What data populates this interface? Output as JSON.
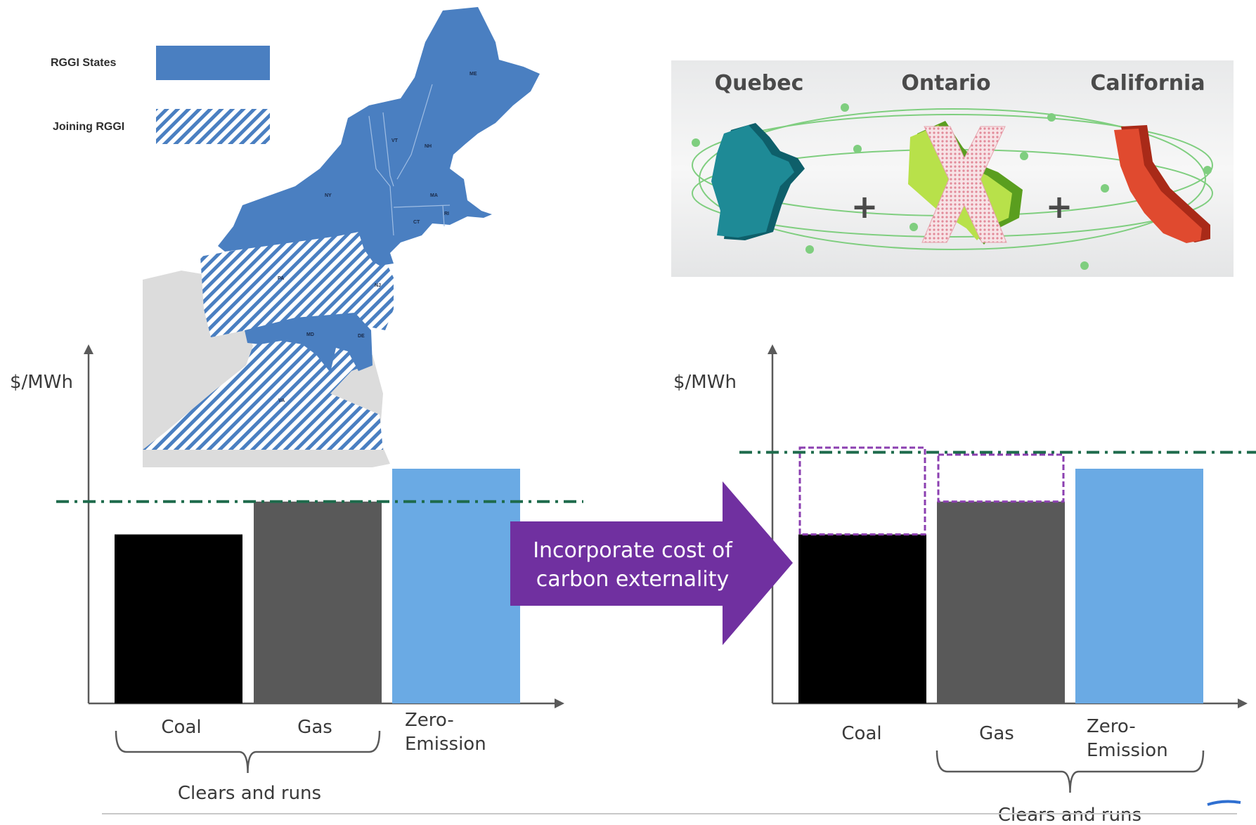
{
  "colors": {
    "rggi_blue": "#4a7fc1",
    "hatch_blue": "#4a7fc1",
    "other_states_gray": "#dcdcdc",
    "coal": "#000000",
    "gas": "#595959",
    "zero_emission": "#6aaae4",
    "clearing_line": "#1e6b4c",
    "carbon_cost_outline": "#8b3fb0",
    "arrow_purple": "#7030a0",
    "quebec": "#1e8a96",
    "ontario": "#8fcf3a",
    "california": "#e04a2f",
    "orbit": "#7fce7f"
  },
  "map_legend": {
    "rggi_states": "RGGI States",
    "joining_rggi": "Joining RGGI"
  },
  "map_state_labels": {
    "me": "ME",
    "vt": "VT",
    "nh": "NH",
    "ny": "NY",
    "ma": "MA",
    "ct": "CT",
    "ri": "RI",
    "pa": "PA",
    "nj": "NJ",
    "md": "MD",
    "de": "DE",
    "va": "VA"
  },
  "linkage_graphic": {
    "regions": [
      "Quebec",
      "Ontario",
      "California"
    ],
    "plus_sign": "+",
    "ontario_crossed_out": true,
    "icons": [
      "quebec-shape-icon",
      "ontario-shape-icon",
      "california-shape-icon",
      "cross-out-icon"
    ]
  },
  "arrow_label": {
    "line1": "Incorporate cost of",
    "line2": "carbon externality"
  },
  "chart_data": [
    {
      "type": "bar",
      "ylabel": "$/MWh",
      "xlabel": "",
      "categories": [
        "Coal",
        "Gas",
        "Zero-\nEmission"
      ],
      "category_lines": [
        [
          "Coal"
        ],
        [
          "Gas"
        ],
        [
          "Zero-",
          "Emission"
        ]
      ],
      "values": [
        0.72,
        0.86,
        1.0
      ],
      "bar_colors": [
        "#000000",
        "#595959",
        "#6aaae4"
      ],
      "clearing_price": 0.86,
      "bracket": {
        "label": "Clears and runs",
        "categories": [
          "Coal",
          "Gas"
        ]
      }
    },
    {
      "type": "bar",
      "ylabel": "$/MWh",
      "xlabel": "",
      "categories": [
        "Coal",
        "Gas",
        "Zero-\nEmission"
      ],
      "category_lines": [
        [
          "Coal"
        ],
        [
          "Gas"
        ],
        [
          "Zero-",
          "Emission"
        ]
      ],
      "values": [
        0.72,
        0.86,
        1.0
      ],
      "carbon_adder": [
        0.37,
        0.2,
        0
      ],
      "bar_colors": [
        "#000000",
        "#595959",
        "#6aaae4"
      ],
      "clearing_price": 1.07,
      "bracket": {
        "label": "Clears and runs",
        "categories": [
          "Gas",
          "Zero-\nEmission"
        ]
      }
    }
  ]
}
